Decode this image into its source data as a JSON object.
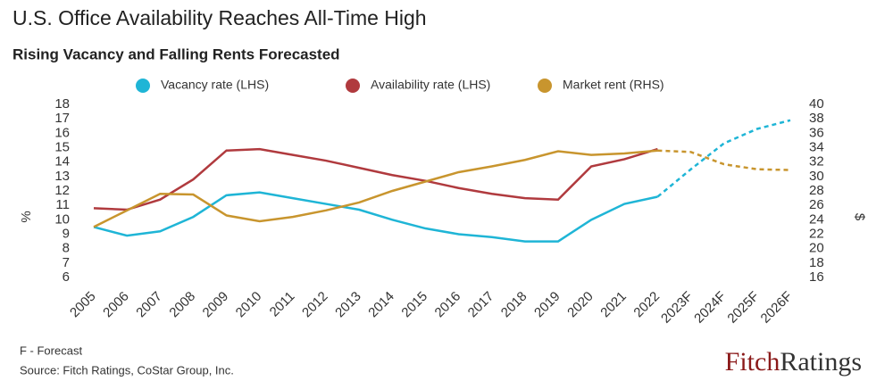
{
  "chart_data": {
    "type": "line",
    "title": "U.S. Office Availability Reaches All-Time High",
    "subtitle": "Rising Vacancy and Falling Rents Forecasted",
    "ylabel": "%",
    "y2label": "$",
    "categories": [
      "2005",
      "2006",
      "2007",
      "2008",
      "2009",
      "2010",
      "2011",
      "2012",
      "2013",
      "2014",
      "2015",
      "2016",
      "2017",
      "2018",
      "2019",
      "2020",
      "2021",
      "2022",
      "2023F",
      "2024F",
      "2025F",
      "2026F"
    ],
    "ylim": [
      6,
      18
    ],
    "yticks": [
      6,
      7,
      8,
      9,
      10,
      11,
      12,
      13,
      14,
      15,
      16,
      17,
      18
    ],
    "y2lim": [
      16,
      40
    ],
    "y2ticks": [
      16,
      18,
      20,
      22,
      24,
      26,
      28,
      30,
      32,
      34,
      36,
      38,
      40
    ],
    "dashed_after": "2022",
    "series": [
      {
        "name": "Vacancy rate (LHS)",
        "color": "#1fb5d6",
        "values": [
          9.5,
          8.9,
          9.2,
          10.2,
          11.7,
          11.9,
          11.5,
          11.1,
          10.7,
          10.0,
          9.4,
          9.0,
          8.8,
          8.5,
          8.5,
          10.0,
          11.1,
          11.6,
          13.5,
          15.3,
          16.3,
          16.9
        ]
      },
      {
        "name": "Availability rate (LHS)",
        "color": "#b03a3e",
        "values": [
          10.8,
          10.7,
          11.4,
          12.8,
          14.8,
          14.9,
          14.5,
          14.1,
          13.6,
          13.1,
          12.7,
          12.2,
          11.8,
          11.5,
          11.4,
          13.7,
          14.2,
          14.9,
          null,
          null,
          null,
          null
        ]
      },
      {
        "name": "Market rent (RHS)",
        "color": "#c8952e",
        "axis": "y2",
        "values": [
          23.0,
          25.3,
          27.6,
          27.5,
          24.6,
          23.8,
          24.4,
          25.3,
          26.4,
          28.0,
          29.3,
          30.6,
          31.4,
          32.3,
          33.5,
          33.0,
          33.2,
          33.6,
          33.4,
          31.7,
          31.0,
          30.9
        ]
      }
    ],
    "notes": [
      "F - Forecast",
      "Source: Fitch Ratings, CoStar Group, Inc."
    ],
    "logo": [
      "Fitch",
      "Ratings"
    ]
  }
}
